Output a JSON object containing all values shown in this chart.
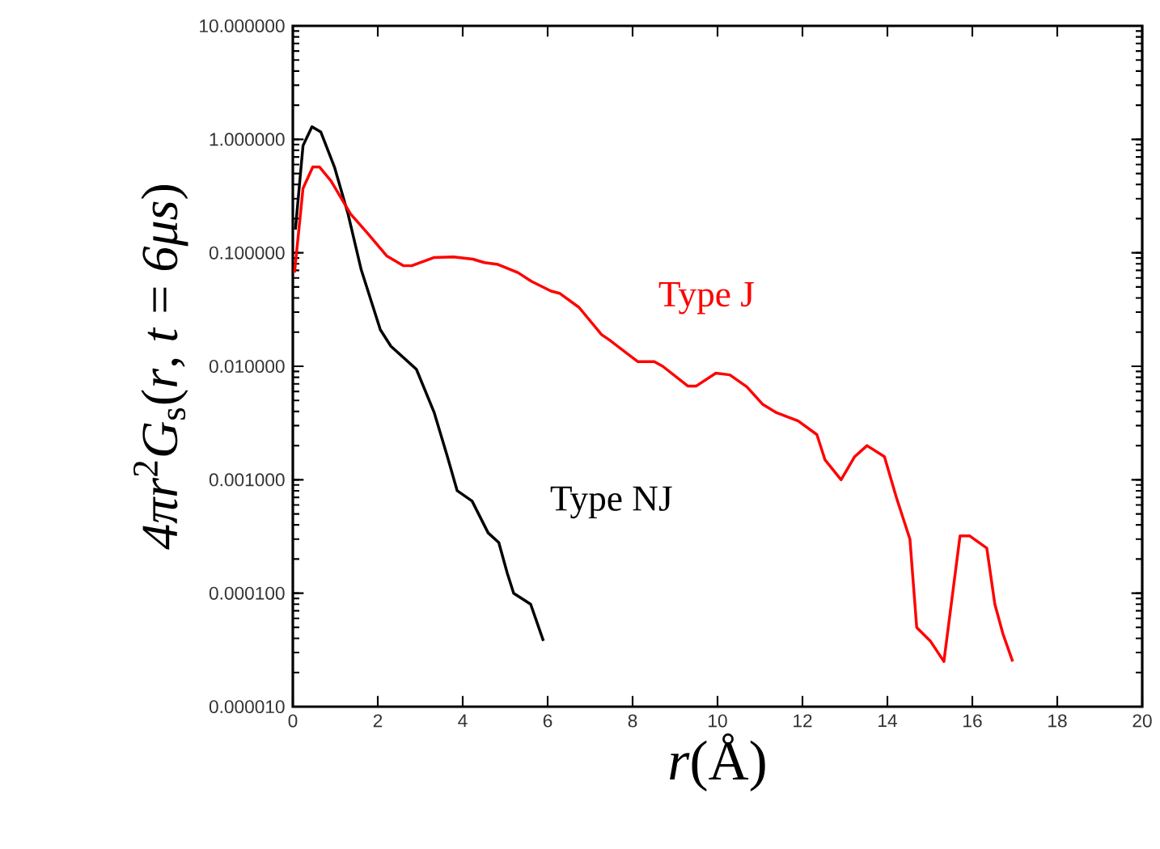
{
  "chart_data": {
    "type": "line",
    "xlabel": "*r*(Å)",
    "ylabel": "*4πr*$^{2}$*G*$_{s}$(*r*, *t* = *6μs*)",
    "log": "y",
    "grid": false,
    "legend": false,
    "marker": "none",
    "line_style": "solid",
    "xlim": [
      0,
      20
    ],
    "xticks": [
      0,
      2,
      4,
      6,
      8,
      10,
      12,
      14,
      16,
      18,
      20
    ],
    "ylim": [
      1e-05,
      10
    ],
    "yticks": [
      {
        "value": 1e-05,
        "label": "0.000010"
      },
      {
        "value": 0.0001,
        "label": "0.000100"
      },
      {
        "value": 0.001,
        "label": "0.001000"
      },
      {
        "value": 0.01,
        "label": "0.010000"
      },
      {
        "value": 0.1,
        "label": "0.100000"
      },
      {
        "value": 1,
        "label": "1.000000"
      },
      {
        "value": 10,
        "label": "10.000000"
      }
    ],
    "series": [
      {
        "name": "Type NJ",
        "color": "#000000",
        "x": [
          0.06,
          0.24,
          0.45,
          0.66,
          0.98,
          1.3,
          1.61,
          2.06,
          2.31,
          2.91,
          3.33,
          3.64,
          3.87,
          4.22,
          4.6,
          4.85,
          5.05,
          5.2,
          5.6,
          5.9
        ],
        "values": [
          0.16,
          0.88,
          1.29,
          1.16,
          0.57,
          0.22,
          0.071,
          0.021,
          0.015,
          0.0094,
          0.0039,
          0.0016,
          0.0008,
          0.00065,
          0.00034,
          0.00028,
          0.00015,
          0.0001,
          8e-05,
          3.8e-05
        ]
      },
      {
        "name": "Type J",
        "color": "#ff0000",
        "x": [
          0.04,
          0.24,
          0.47,
          0.63,
          0.9,
          1.36,
          1.75,
          2.21,
          2.6,
          2.8,
          3.33,
          3.78,
          4.24,
          4.51,
          4.83,
          5.3,
          5.62,
          6.08,
          6.28,
          6.74,
          7.27,
          7.46,
          8.12,
          8.51,
          8.71,
          9.3,
          9.5,
          9.96,
          10.29,
          10.69,
          11.07,
          11.39,
          11.9,
          12.34,
          12.53,
          12.91,
          13.23,
          13.52,
          13.93,
          14.21,
          14.53,
          14.69,
          15.01,
          15.33,
          15.71,
          15.94,
          16.34,
          16.53,
          16.72,
          16.95
        ],
        "values": [
          0.067,
          0.37,
          0.57,
          0.57,
          0.43,
          0.22,
          0.15,
          0.094,
          0.077,
          0.077,
          0.091,
          0.092,
          0.088,
          0.082,
          0.079,
          0.067,
          0.056,
          0.046,
          0.044,
          0.033,
          0.019,
          0.017,
          0.011,
          0.011,
          0.01,
          0.0067,
          0.0067,
          0.0087,
          0.0084,
          0.0066,
          0.0046,
          0.0039,
          0.0033,
          0.0025,
          0.0015,
          0.001,
          0.0016,
          0.002,
          0.0016,
          0.0007,
          0.0003,
          5e-05,
          3.8e-05,
          2.5e-05,
          0.00032,
          0.00032,
          0.00025,
          8e-05,
          4.4e-05,
          2.5e-05
        ]
      }
    ]
  }
}
